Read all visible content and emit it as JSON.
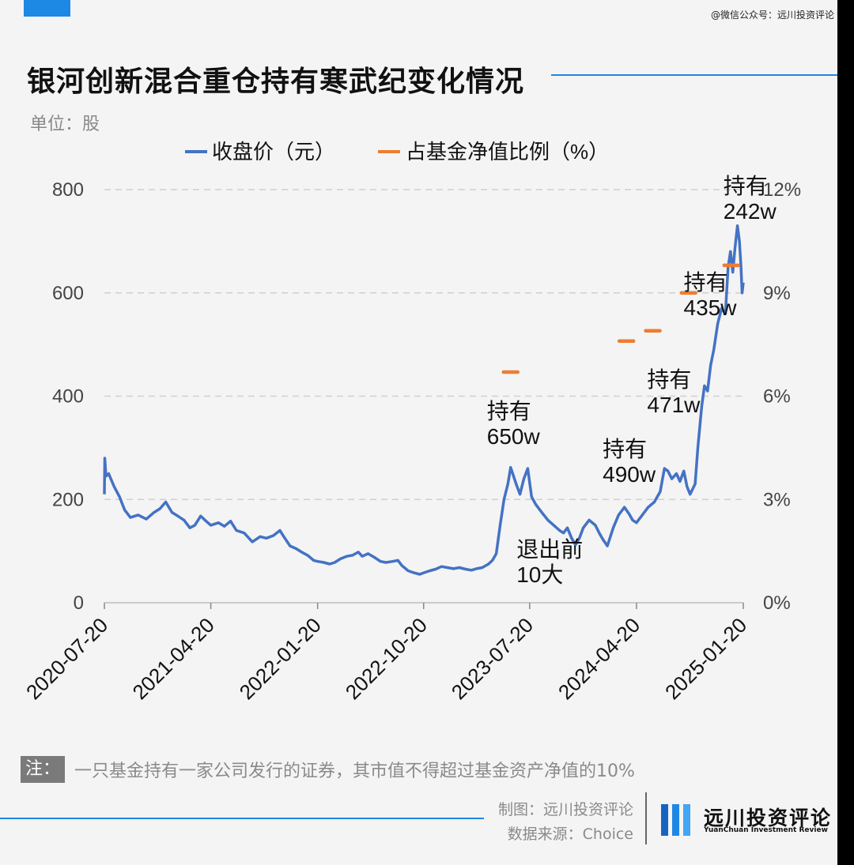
{
  "header": {
    "watermark": "@微信公众号：远川投资评论",
    "title": "银河创新混合重仓持有寒武纪变化情况",
    "unit": "单位：股"
  },
  "chart_data": {
    "type": "line",
    "legend": [
      "收盘价（元）",
      "占基金净值比例（%）"
    ],
    "legend_placement": "top-center",
    "x_ticks": [
      "2020-07-20",
      "2021-04-20",
      "2022-01-20",
      "2022-10-20",
      "2023-07-20",
      "2024-04-20",
      "2025-01-20"
    ],
    "x_range": [
      "2020-07-20",
      "2025-01-20"
    ],
    "y_left": {
      "ticks": [
        "0",
        "200",
        "400",
        "600",
        "800"
      ],
      "range": [
        0,
        800
      ]
    },
    "y_right": {
      "ticks": [
        "0%",
        "3%",
        "6%",
        "9%",
        "12%"
      ],
      "range": [
        0,
        12
      ]
    },
    "grid": true,
    "series": [
      {
        "name": "收盘价（元）",
        "axis": "left",
        "color": "#4472c4",
        "points": [
          [
            "2020-07-20",
            210
          ],
          [
            "2020-07-21",
            280
          ],
          [
            "2020-07-24",
            245
          ],
          [
            "2020-07-31",
            250
          ],
          [
            "2020-08-14",
            225
          ],
          [
            "2020-08-28",
            205
          ],
          [
            "2020-09-10",
            180
          ],
          [
            "2020-09-25",
            165
          ],
          [
            "2020-10-15",
            170
          ],
          [
            "2020-11-05",
            162
          ],
          [
            "2020-11-25",
            175
          ],
          [
            "2020-12-10",
            182
          ],
          [
            "2020-12-25",
            195
          ],
          [
            "2021-01-10",
            175
          ],
          [
            "2021-01-25",
            168
          ],
          [
            "2021-02-10",
            160
          ],
          [
            "2021-02-25",
            145
          ],
          [
            "2021-03-10",
            150
          ],
          [
            "2021-03-25",
            168
          ],
          [
            "2021-04-05",
            160
          ],
          [
            "2021-04-20",
            150
          ],
          [
            "2021-05-10",
            155
          ],
          [
            "2021-05-25",
            148
          ],
          [
            "2021-06-10",
            158
          ],
          [
            "2021-06-25",
            140
          ],
          [
            "2021-07-15",
            135
          ],
          [
            "2021-08-05",
            118
          ],
          [
            "2021-08-25",
            128
          ],
          [
            "2021-09-10",
            125
          ],
          [
            "2021-09-28",
            130
          ],
          [
            "2021-10-15",
            140
          ],
          [
            "2021-10-25",
            128
          ],
          [
            "2021-11-10",
            110
          ],
          [
            "2021-11-25",
            105
          ],
          [
            "2021-12-10",
            98
          ],
          [
            "2021-12-25",
            92
          ],
          [
            "2022-01-10",
            82
          ],
          [
            "2022-01-20",
            80
          ],
          [
            "2022-02-05",
            78
          ],
          [
            "2022-02-20",
            75
          ],
          [
            "2022-03-05",
            78
          ],
          [
            "2022-03-20",
            85
          ],
          [
            "2022-04-05",
            90
          ],
          [
            "2022-04-20",
            92
          ],
          [
            "2022-05-05",
            98
          ],
          [
            "2022-05-15",
            90
          ],
          [
            "2022-05-30",
            95
          ],
          [
            "2022-06-15",
            88
          ],
          [
            "2022-07-01",
            80
          ],
          [
            "2022-07-15",
            78
          ],
          [
            "2022-08-01",
            80
          ],
          [
            "2022-08-15",
            82
          ],
          [
            "2022-08-25",
            72
          ],
          [
            "2022-09-10",
            62
          ],
          [
            "2022-09-25",
            58
          ],
          [
            "2022-10-10",
            55
          ],
          [
            "2022-10-20",
            58
          ],
          [
            "2022-11-05",
            62
          ],
          [
            "2022-11-20",
            65
          ],
          [
            "2022-12-05",
            70
          ],
          [
            "2022-12-20",
            68
          ],
          [
            "2023-01-05",
            66
          ],
          [
            "2023-01-20",
            68
          ],
          [
            "2023-02-05",
            65
          ],
          [
            "2023-02-20",
            63
          ],
          [
            "2023-03-05",
            66
          ],
          [
            "2023-03-20",
            68
          ],
          [
            "2023-04-05",
            75
          ],
          [
            "2023-04-15",
            82
          ],
          [
            "2023-04-25",
            95
          ],
          [
            "2023-05-05",
            150
          ],
          [
            "2023-05-15",
            200
          ],
          [
            "2023-05-25",
            230
          ],
          [
            "2023-06-01",
            262
          ],
          [
            "2023-06-15",
            230
          ],
          [
            "2023-06-25",
            210
          ],
          [
            "2023-07-05",
            240
          ],
          [
            "2023-07-15",
            260
          ],
          [
            "2023-07-25",
            205
          ],
          [
            "2023-08-05",
            190
          ],
          [
            "2023-08-20",
            175
          ],
          [
            "2023-09-05",
            160
          ],
          [
            "2023-09-20",
            150
          ],
          [
            "2023-10-05",
            140
          ],
          [
            "2023-10-15",
            135
          ],
          [
            "2023-10-25",
            145
          ],
          [
            "2023-11-05",
            125
          ],
          [
            "2023-11-15",
            112
          ],
          [
            "2023-11-25",
            125
          ],
          [
            "2023-12-05",
            145
          ],
          [
            "2023-12-20",
            160
          ],
          [
            "2024-01-05",
            150
          ],
          [
            "2024-01-15",
            135
          ],
          [
            "2024-01-25",
            122
          ],
          [
            "2024-02-05",
            110
          ],
          [
            "2024-02-20",
            145
          ],
          [
            "2024-03-05",
            170
          ],
          [
            "2024-03-20",
            185
          ],
          [
            "2024-04-01",
            172
          ],
          [
            "2024-04-10",
            160
          ],
          [
            "2024-04-20",
            155
          ],
          [
            "2024-05-05",
            170
          ],
          [
            "2024-05-20",
            185
          ],
          [
            "2024-06-05",
            195
          ],
          [
            "2024-06-20",
            215
          ],
          [
            "2024-07-01",
            260
          ],
          [
            "2024-07-10",
            255
          ],
          [
            "2024-07-20",
            240
          ],
          [
            "2024-08-01",
            250
          ],
          [
            "2024-08-10",
            235
          ],
          [
            "2024-08-20",
            255
          ],
          [
            "2024-08-28",
            225
          ],
          [
            "2024-09-05",
            210
          ],
          [
            "2024-09-18",
            230
          ],
          [
            "2024-09-25",
            300
          ],
          [
            "2024-10-05",
            380
          ],
          [
            "2024-10-12",
            420
          ],
          [
            "2024-10-20",
            410
          ],
          [
            "2024-10-28",
            460
          ],
          [
            "2024-11-05",
            490
          ],
          [
            "2024-11-15",
            540
          ],
          [
            "2024-11-25",
            570
          ],
          [
            "2024-12-05",
            560
          ],
          [
            "2024-12-12",
            650
          ],
          [
            "2024-12-18",
            680
          ],
          [
            "2024-12-24",
            640
          ],
          [
            "2024-12-30",
            690
          ],
          [
            "2025-01-05",
            730
          ],
          [
            "2025-01-10",
            700
          ],
          [
            "2025-01-14",
            650
          ],
          [
            "2025-01-17",
            600
          ],
          [
            "2025-01-20",
            620
          ]
        ]
      },
      {
        "name": "占基金净值比例（%）",
        "axis": "right",
        "color": "#ed7d31",
        "points": [
          [
            "2023-06-01",
            6.7
          ],
          [
            "2024-03-25",
            7.6
          ],
          [
            "2024-06-01",
            7.9
          ],
          [
            "2024-09-01",
            9.0
          ],
          [
            "2024-12-20",
            9.8
          ]
        ]
      }
    ],
    "annotations": [
      {
        "lines": [
          "持有",
          "650w"
        ],
        "date": "2023-06-01"
      },
      {
        "lines": [
          "退出前",
          "10大"
        ],
        "date": "2023-09-30"
      },
      {
        "lines": [
          "持有",
          "490w"
        ],
        "date": "2024-03-25"
      },
      {
        "lines": [
          "持有",
          "471w"
        ],
        "date": "2024-06-15"
      },
      {
        "lines": [
          "持有",
          "435w"
        ],
        "date": "2024-09-25"
      },
      {
        "lines": [
          "持有",
          "242w"
        ],
        "date": "2024-12-20"
      }
    ]
  },
  "footer": {
    "note_tag": "注：",
    "note": "一只基金持有一家公司发行的证券，其市值不得超过基金资产净值的10%",
    "credit_maker": "制图：远川投资评论",
    "credit_source": "数据来源：Choice",
    "brand_name": "远川投资评论",
    "brand_sub": "YuanChuan Investment Review"
  },
  "colors": {
    "accent": "#1e88e5",
    "price_line": "#4472c4",
    "ratio_marker": "#ed7d31"
  }
}
